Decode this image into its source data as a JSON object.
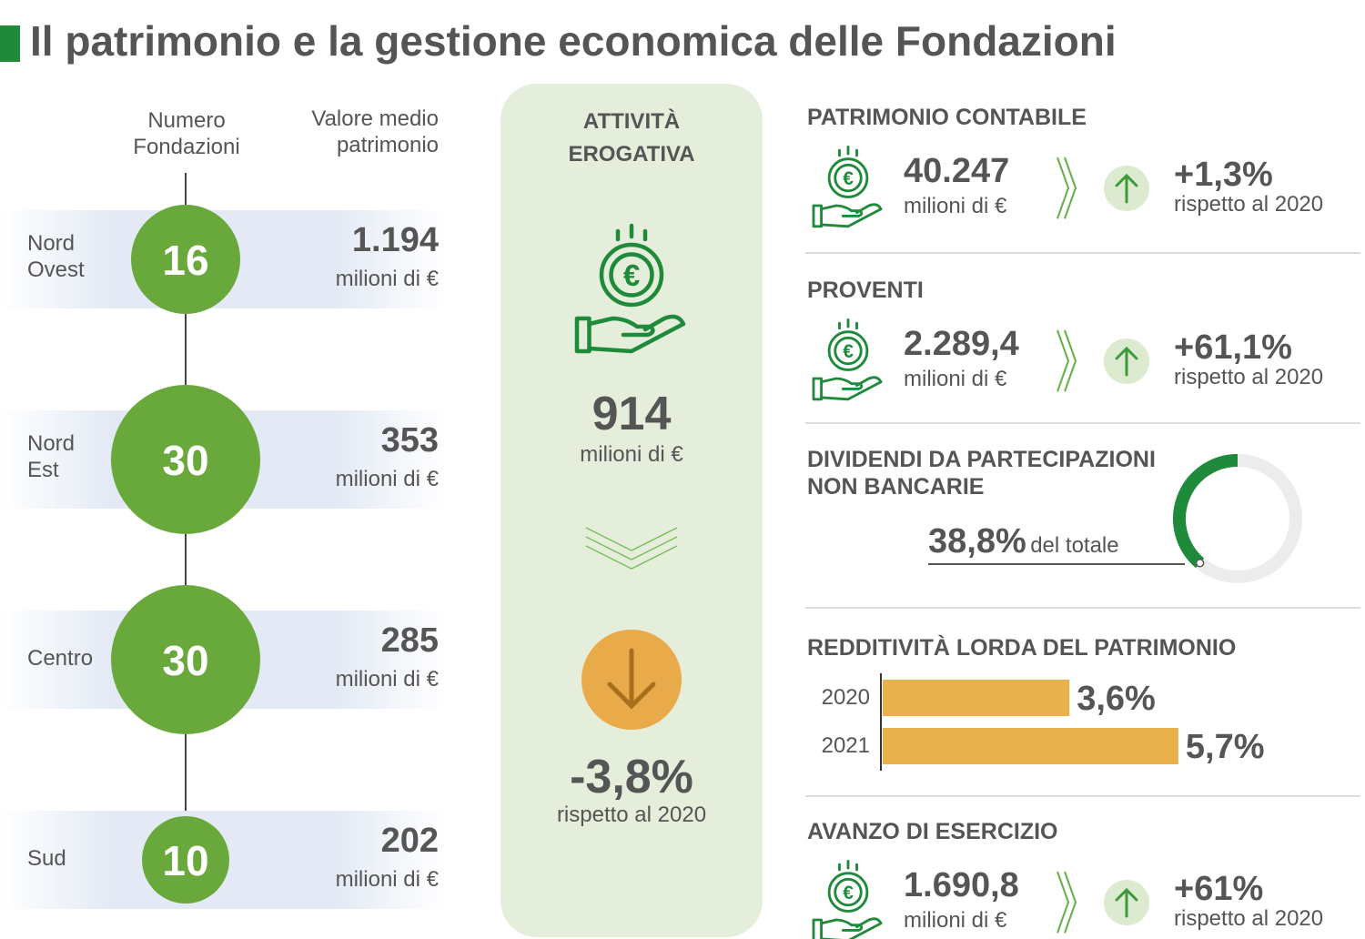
{
  "title": "Il patrimonio e la gestione economica delle Fondazioni",
  "regions": {
    "headers": [
      "Numero Fondazioni",
      "Valore medio patrimonio"
    ],
    "rows": [
      {
        "name": "Nord Ovest",
        "count": 16,
        "value": "1.194",
        "unit": "milioni di €"
      },
      {
        "name": "Nord Est",
        "count": 30,
        "value": "353",
        "unit": "milioni di €"
      },
      {
        "name": "Centro",
        "count": 30,
        "value": "285",
        "unit": "milioni di €"
      },
      {
        "name": "Sud",
        "count": 10,
        "value": "202",
        "unit": "milioni di €"
      }
    ]
  },
  "erogativa": {
    "title": "ATTIVITÀ EROGATIVA",
    "value": "914",
    "unit": "milioni di €",
    "change": "-3,8%",
    "note": "rispetto al 2020"
  },
  "stats": [
    {
      "title": "PATRIMONIO CONTABILE",
      "value": "40.247",
      "unit": "milioni di €",
      "change": "+1,3%",
      "note": "rispetto al 2020"
    },
    {
      "title": "PROVENTI",
      "value": "2.289,4",
      "unit": "milioni di €",
      "change": "+61,1%",
      "note": "rispetto al 2020"
    },
    {
      "title": "AVANZO DI ESERCIZIO",
      "value": "1.690,8",
      "unit": "milioni di €",
      "change": "+61%",
      "note": "rispetto al 2020"
    }
  ],
  "dividendi": {
    "title": "DIVIDENDI DA PARTECIPAZIONI NON BANCARIE",
    "value": 38.8,
    "label": "38,8%",
    "note": "del totale"
  },
  "redditivita": {
    "title": "REDDITIVITÀ LORDA DEL PATRIMONIO",
    "bars": [
      {
        "year": "2020",
        "value": 3.6,
        "label": "3,6%"
      },
      {
        "year": "2021",
        "value": 5.7,
        "label": "5,7%"
      }
    ]
  }
}
